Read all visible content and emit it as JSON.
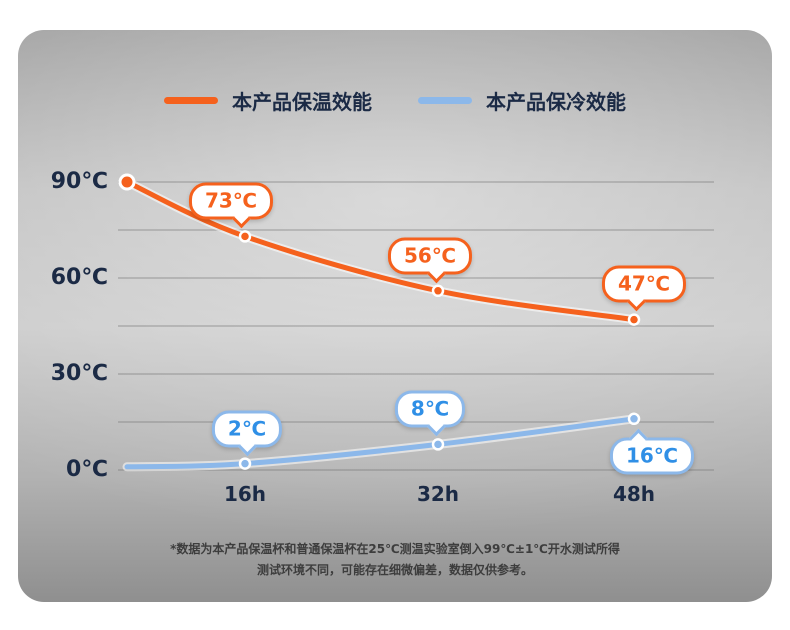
{
  "theme": {
    "orange": "#f5611d",
    "blue": "#8cb8ea",
    "blue-text": "#2f8fe6",
    "navy": "#1b2a45",
    "card-gray": "#bfbfbf"
  },
  "legend": [
    {
      "label": "本产品保温效能",
      "color": "#f5611d"
    },
    {
      "label": "本产品保冷效能",
      "color": "#8cb8ea"
    }
  ],
  "chart_data": {
    "type": "line",
    "x_unit": "h",
    "x_hours": [
      0,
      16,
      32,
      48
    ],
    "categories": [
      "16h",
      "32h",
      "48h"
    ],
    "y_axis_labels": [
      "90℃",
      "60℃",
      "30℃",
      "0℃"
    ],
    "y_ticks": [
      90,
      60,
      30,
      0
    ],
    "ylim": [
      0,
      90
    ],
    "grid_step": 15,
    "grid": "on",
    "legend_position": "top",
    "series": [
      {
        "name": "本产品保温效能",
        "color": "#f5611d",
        "values": [
          90,
          73,
          56,
          47
        ],
        "labels": [
          "",
          "73℃",
          "56℃",
          "47℃"
        ]
      },
      {
        "name": "本产品保冷效能",
        "color": "#8cb8ea",
        "label_color": "#2f8fe6",
        "values": [
          1,
          2,
          8,
          16
        ],
        "labels": [
          "",
          "2℃",
          "8℃",
          "16℃"
        ]
      }
    ]
  },
  "footnote": {
    "line1": "*数据为本产品保温杯和普通保温杯在25℃测温实验室倒入99℃±1℃开水测试所得",
    "line2": "测试环境不同，可能存在细微偏差，数据仅供参考。"
  }
}
